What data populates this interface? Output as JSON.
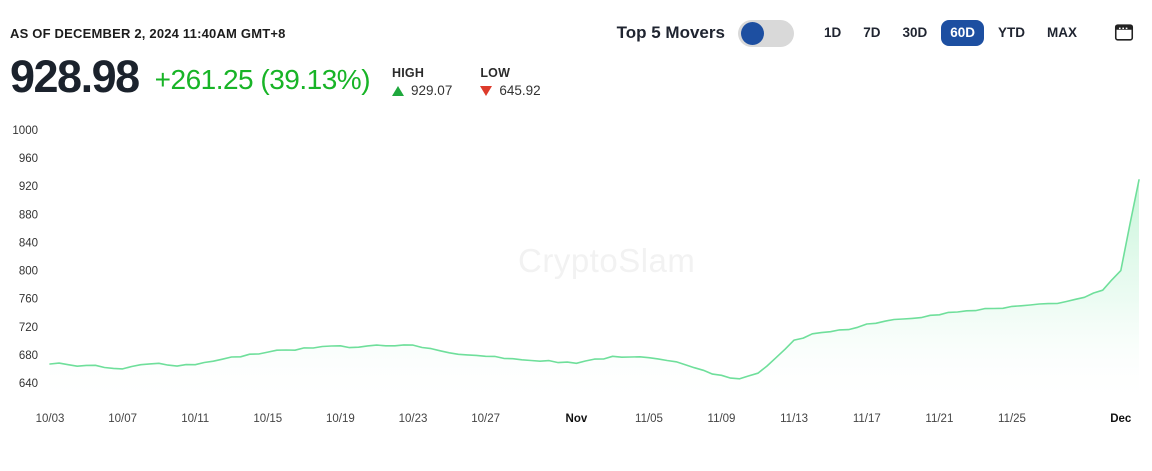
{
  "header": {
    "as_of": "AS OF DECEMBER 2, 2024 11:40AM GMT+8",
    "toggle_label": "Top 5 Movers",
    "toggle_state": "off",
    "ranges": [
      "1D",
      "7D",
      "30D",
      "60D",
      "YTD",
      "MAX"
    ],
    "selected_range": "60D",
    "calendar_icon": "calendar-icon"
  },
  "price": {
    "value": "928.98",
    "change": "+261.25 (39.13%)",
    "high_label": "HIGH",
    "high_value": "929.07",
    "low_label": "LOW",
    "low_value": "645.92"
  },
  "watermark": "CryptoSlam",
  "colors": {
    "accent_blue": "#1d4fa1",
    "positive_green": "#18b427",
    "triangle_green": "#1fa83d",
    "triangle_red": "#dd3b2b",
    "line_green": "#6fdf9b",
    "area_top": "#7de8a6",
    "axis_label": "#444444"
  },
  "chart_data": {
    "type": "area",
    "title": "",
    "xlabel": "",
    "ylabel": "",
    "grid": false,
    "legend": "none",
    "ylim": [
      620,
      1010
    ],
    "y_ticks": [
      640,
      680,
      720,
      760,
      800,
      840,
      880,
      920,
      960,
      1000
    ],
    "high": 929.07,
    "low": 645.92,
    "x": [
      "10/03",
      "10/04",
      "10/05",
      "10/06",
      "10/07",
      "10/08",
      "10/09",
      "10/10",
      "10/11",
      "10/12",
      "10/13",
      "10/14",
      "10/15",
      "10/16",
      "10/17",
      "10/18",
      "10/19",
      "10/20",
      "10/21",
      "10/22",
      "10/23",
      "10/24",
      "10/25",
      "10/26",
      "10/27",
      "10/28",
      "10/29",
      "10/30",
      "10/31",
      "11/01",
      "11/02",
      "11/03",
      "11/04",
      "11/05",
      "11/06",
      "11/07",
      "11/08",
      "11/09",
      "11/10",
      "11/11",
      "11/12",
      "11/13",
      "11/14",
      "11/15",
      "11/16",
      "11/17",
      "11/18",
      "11/19",
      "11/20",
      "11/21",
      "11/22",
      "11/23",
      "11/24",
      "11/25",
      "11/26",
      "11/27",
      "11/28",
      "11/29",
      "11/30",
      "12/01",
      "12/02"
    ],
    "values": [
      667,
      666,
      665,
      662,
      660,
      666,
      668,
      664,
      666,
      671,
      677,
      681,
      684,
      687,
      690,
      692,
      693,
      691,
      694,
      693,
      694,
      689,
      683,
      680,
      678,
      675,
      673,
      671,
      669,
      668,
      674,
      678,
      677,
      676,
      672,
      666,
      658,
      651,
      646,
      654,
      676,
      701,
      710,
      713,
      716,
      724,
      728,
      731,
      733,
      737,
      741,
      743,
      746,
      749,
      751,
      753,
      756,
      762,
      772,
      800,
      929
    ],
    "x_ticks": [
      {
        "i": 0,
        "label": "10/03",
        "bold": false
      },
      {
        "i": 4,
        "label": "10/07",
        "bold": false
      },
      {
        "i": 8,
        "label": "10/11",
        "bold": false
      },
      {
        "i": 12,
        "label": "10/15",
        "bold": false
      },
      {
        "i": 16,
        "label": "10/19",
        "bold": false
      },
      {
        "i": 20,
        "label": "10/23",
        "bold": false
      },
      {
        "i": 24,
        "label": "10/27",
        "bold": false
      },
      {
        "i": 29,
        "label": "Nov",
        "bold": true
      },
      {
        "i": 33,
        "label": "11/05",
        "bold": false
      },
      {
        "i": 37,
        "label": "11/09",
        "bold": false
      },
      {
        "i": 41,
        "label": "11/13",
        "bold": false
      },
      {
        "i": 45,
        "label": "11/17",
        "bold": false
      },
      {
        "i": 49,
        "label": "11/21",
        "bold": false
      },
      {
        "i": 53,
        "label": "11/25",
        "bold": false
      },
      {
        "i": 59,
        "label": "Dec",
        "bold": true
      }
    ]
  }
}
